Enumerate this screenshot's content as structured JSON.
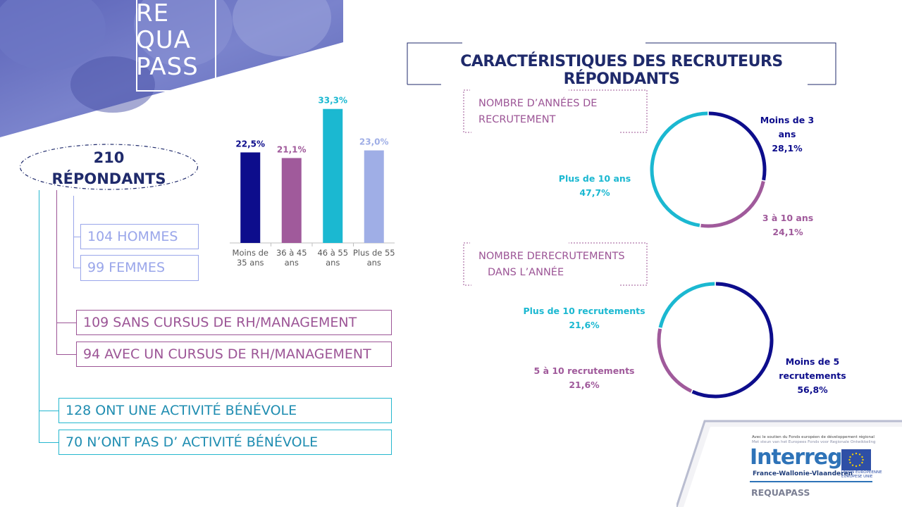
{
  "logo": {
    "lines": [
      "RE",
      "QUA",
      "PASS"
    ]
  },
  "respondents": {
    "count": "210",
    "label": "RÉPONDANTS"
  },
  "groups": [
    {
      "label": "104 HOMMES"
    },
    {
      "label": "99 FEMMES"
    },
    {
      "label": "109 SANS CURSUS DE RH/MANAGEMENT"
    },
    {
      "label": "94 AVEC UN CURSUS DE RH/MANAGEMENT"
    },
    {
      "label": "128 ONT UNE ACTIVITÉ BÉNÉVOLE"
    },
    {
      "label": "70 N’ONT PAS D’ ACTIVITÉ BÉNÉVOLE"
    }
  ],
  "title": "CARACTÉRISTIQUES DES RECRUTEURS RÉPONDANTS",
  "sections": {
    "years": [
      "NOMBRE D’ANNÉES DE",
      "RECRUTEMENT"
    ],
    "recruitments": [
      "NOMBRE DERECRUTEMENTS",
      "DANS L’ANNÉE"
    ]
  },
  "colors": {
    "navy": "#0d0d8c",
    "purple": "#a05a9b",
    "cyan": "#1bb8d1",
    "lavender": "#9faee6"
  },
  "chart_data": [
    {
      "type": "bar",
      "categories": [
        [
          "Moins de",
          "35 ans"
        ],
        [
          "36 à 45",
          "ans"
        ],
        [
          "46 à 55",
          "ans"
        ],
        [
          "Plus de 55",
          "ans"
        ]
      ],
      "values": [
        22.5,
        21.1,
        33.3,
        23.0
      ],
      "value_labels": [
        "22,5%",
        "21,1%",
        "33,3%",
        "23,0%"
      ],
      "bar_colors": [
        "#0d0d8c",
        "#a05a9b",
        "#1bb8d1",
        "#9faee6"
      ],
      "ylim": [
        0,
        35
      ]
    },
    {
      "type": "pie",
      "variant": "donut",
      "labels": [
        [
          "Moins de 3 ans",
          "28,1%"
        ],
        [
          "3 à 10 ans",
          "24,1%"
        ],
        [
          "Plus de 10 ans",
          "47,7%"
        ]
      ],
      "values": [
        28.1,
        24.1,
        47.7
      ],
      "colors": [
        "#0d0d8c",
        "#a05a9b",
        "#1bb8d1"
      ]
    },
    {
      "type": "pie",
      "variant": "donut",
      "labels": [
        [
          "Moins de 5",
          "recrutements",
          "56,8%"
        ],
        [
          "5 à 10 recrutements",
          "21,6%"
        ],
        [
          "Plus de 10 recrutements",
          "21,6%"
        ]
      ],
      "values": [
        56.8,
        21.6,
        21.6
      ],
      "colors": [
        "#0d0d8c",
        "#a05a9b",
        "#1bb8d1"
      ]
    }
  ],
  "footer": {
    "support_fr": "Avec le soutien du Fonds européen de développement régional",
    "support_nl": "Met steun van het Europees Fonds voor Regionale Ontwikkeling",
    "brand": "Interreg",
    "region": "France-Wallonie-Vlaanderen",
    "eu_fr": "UNION EUROPÉENNE",
    "eu_nl": "EUROPESE UNIE",
    "project": "REQUAPASS"
  }
}
